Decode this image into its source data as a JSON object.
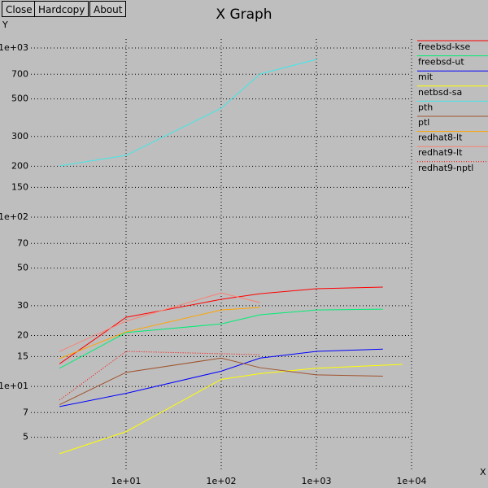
{
  "buttons": [
    "Close",
    "Hardcopy",
    "About"
  ],
  "chart_data": {
    "type": "line",
    "title": "X Graph",
    "x_label": "X",
    "y_label": "Y",
    "xscale": "log",
    "yscale": "log",
    "grid": true,
    "legend": "right",
    "xlim": [
      1,
      10000
    ],
    "ylim": [
      3.13,
      1130
    ],
    "xticks": [
      {
        "value": 10,
        "label": "1e+01"
      },
      {
        "value": 100,
        "label": "1e+02"
      },
      {
        "value": 1000,
        "label": "1e+03"
      },
      {
        "value": 10000,
        "label": "1e+04"
      }
    ],
    "yticks": [
      {
        "value": 1000,
        "label": "1e+03"
      },
      700,
      500,
      300,
      200,
      150,
      {
        "value": 100,
        "label": "1e+02"
      },
      70,
      50,
      30,
      20,
      15,
      {
        "value": 10,
        "label": "1e+01"
      },
      7,
      5
    ],
    "series": [
      {
        "name": "freebsd-kse",
        "color": "#ff0000",
        "x": [
          2,
          10,
          100,
          256,
          1000,
          5000
        ],
        "values": [
          13.6,
          25.6,
          32.7,
          35.3,
          37.8,
          38.6
        ]
      },
      {
        "name": "freebsd-ut",
        "color": "#00ee76",
        "x": [
          2,
          10,
          100,
          256,
          1000,
          5000
        ],
        "values": [
          12.8,
          20.8,
          23.4,
          26.5,
          28.3,
          28.6
        ]
      },
      {
        "name": "mit",
        "color": "#0000ff",
        "x": [
          2,
          10,
          100,
          256,
          1000,
          5000
        ],
        "values": [
          7.6,
          9.1,
          12.3,
          14.7,
          16.1,
          16.6
        ]
      },
      {
        "name": "netbsd-sa",
        "color": "#ffff00",
        "x": [
          2,
          10,
          100,
          256,
          1000,
          8000
        ],
        "values": [
          4.0,
          5.4,
          11.0,
          11.9,
          12.8,
          13.5
        ]
      },
      {
        "name": "pth",
        "color": "#40e8e8",
        "x": [
          2,
          10,
          100,
          256,
          1000
        ],
        "values": [
          201,
          232,
          441,
          702,
          857
        ]
      },
      {
        "name": "ptl",
        "color": "#a0522d",
        "x": [
          2,
          10,
          100,
          256,
          1000,
          5000
        ],
        "values": [
          7.8,
          12.1,
          14.7,
          12.9,
          11.7,
          11.5
        ]
      },
      {
        "name": "redhat8-lt",
        "color": "#ffa500",
        "x": [
          2,
          10,
          100,
          256
        ],
        "values": [
          14.6,
          21.0,
          28.3,
          29.3
        ]
      },
      {
        "name": "redhat9-lt",
        "color": "#fa8072",
        "x": [
          2,
          10,
          100,
          256
        ],
        "values": [
          16.1,
          24.3,
          35.7,
          31.3
        ]
      },
      {
        "name": "redhat9-nptl",
        "color": "#ff0000",
        "dash": "dotted",
        "x": [
          2,
          10,
          100,
          256
        ],
        "values": [
          8.3,
          16.1,
          15.6,
          15.4
        ]
      }
    ]
  }
}
